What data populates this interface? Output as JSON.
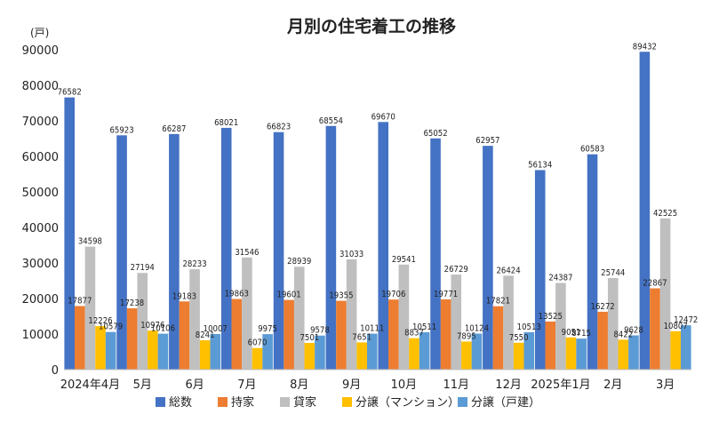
{
  "chart_data": {
    "type": "bar",
    "title": "月別の住宅着工の推移",
    "unit_label": "(戸)",
    "categories": [
      "2024年4月",
      "5月",
      "6月",
      "7月",
      "8月",
      "9月",
      "10月",
      "11月",
      "12月",
      "2025年1月",
      "2月",
      "3月"
    ],
    "ylim": [
      0,
      90000
    ],
    "yticks": [
      0,
      10000,
      20000,
      30000,
      40000,
      50000,
      60000,
      70000,
      80000,
      90000
    ],
    "legend_position": "bottom",
    "grid": false,
    "series": [
      {
        "name": "総数",
        "color": "#4472C4",
        "values": [
          76582,
          65923,
          66287,
          68021,
          66823,
          68554,
          69670,
          65052,
          62957,
          56134,
          60583,
          89432
        ]
      },
      {
        "name": "持家",
        "color": "#ED7D31",
        "values": [
          17877,
          17238,
          19183,
          19863,
          19601,
          19355,
          19706,
          19771,
          17821,
          13525,
          16272,
          22867
        ]
      },
      {
        "name": "貸家",
        "color": "#BFBFBF",
        "values": [
          34598,
          27194,
          28233,
          31546,
          28939,
          31033,
          29541,
          26729,
          26424,
          24387,
          25744,
          42525
        ]
      },
      {
        "name": "分譲（マンション）",
        "color": "#FFC000",
        "values": [
          12226,
          10976,
          8241,
          6070,
          7501,
          7651,
          8837,
          7895,
          7550,
          9051,
          8422,
          10807
        ]
      },
      {
        "name": "分譲（戸建）",
        "color": "#5B9BD5",
        "values": [
          10579,
          10106,
          10007,
          9975,
          9578,
          10111,
          10511,
          10124,
          10513,
          8715,
          9628,
          12472
        ]
      }
    ]
  }
}
